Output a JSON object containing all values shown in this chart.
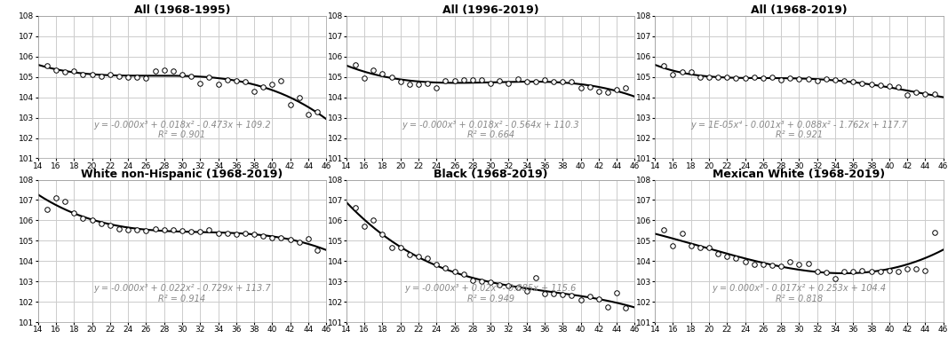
{
  "panels": [
    {
      "title": "All (1968-1995)",
      "equation": "y = -0.000x³ + 0.018x² - 0.473x + 109.2",
      "r2": "R² = 0.901",
      "coeffs_str": "-0.000 0.018 -0.473 109.2",
      "degree": 3,
      "x_data": [
        15,
        16,
        17,
        18,
        19,
        20,
        21,
        22,
        23,
        24,
        25,
        26,
        27,
        28,
        29,
        30,
        31,
        32,
        33,
        34,
        35,
        36,
        37,
        38,
        39,
        40,
        41,
        42,
        43,
        44,
        45
      ],
      "y_data": [
        105.55,
        105.35,
        105.25,
        105.3,
        105.1,
        105.1,
        105.05,
        105.1,
        105.05,
        105.0,
        105.0,
        104.95,
        105.3,
        105.35,
        105.3,
        105.1,
        105.05,
        104.7,
        105.0,
        104.65,
        104.85,
        104.8,
        104.75,
        104.3,
        104.5,
        104.65,
        104.8,
        103.65,
        104.0,
        103.15,
        103.3
      ],
      "x_range": [
        15,
        45
      ]
    },
    {
      "title": "All (1996-2019)",
      "equation": "y = -0.000x³ + 0.018x² - 0.564x + 110.3",
      "r2": "R² = 0.664",
      "coeffs_str": "-0.000 0.018 -0.564 110.3",
      "degree": 3,
      "x_data": [
        15,
        16,
        17,
        18,
        19,
        20,
        21,
        22,
        23,
        24,
        25,
        26,
        27,
        28,
        29,
        30,
        31,
        32,
        33,
        34,
        35,
        36,
        37,
        38,
        39,
        40,
        41,
        42,
        43,
        44,
        45
      ],
      "y_data": [
        105.6,
        104.95,
        105.35,
        105.15,
        105.0,
        104.75,
        104.65,
        104.65,
        104.7,
        104.45,
        104.8,
        104.8,
        104.85,
        104.85,
        104.85,
        104.7,
        104.8,
        104.7,
        104.9,
        104.75,
        104.75,
        104.85,
        104.75,
        104.75,
        104.75,
        104.45,
        104.5,
        104.3,
        104.25,
        104.4,
        104.45
      ],
      "x_range": [
        15,
        45
      ]
    },
    {
      "title": "All (1968-2019)",
      "equation": "y = 1E-05x⁴ - 0.001x³ + 0.088x² - 1.762x + 117.7",
      "r2": "R² = 0.921",
      "coeffs_str": "1e-5 -0.001 0.088 -1.762 117.7",
      "degree": 4,
      "x_data": [
        15,
        16,
        17,
        18,
        19,
        20,
        21,
        22,
        23,
        24,
        25,
        26,
        27,
        28,
        29,
        30,
        31,
        32,
        33,
        34,
        35,
        36,
        37,
        38,
        39,
        40,
        41,
        42,
        43,
        44,
        45
      ],
      "y_data": [
        105.55,
        105.1,
        105.25,
        105.25,
        105.0,
        105.0,
        105.0,
        105.0,
        104.95,
        104.95,
        105.0,
        104.95,
        105.0,
        104.85,
        104.95,
        104.9,
        104.9,
        104.8,
        104.9,
        104.85,
        104.8,
        104.75,
        104.7,
        104.65,
        104.6,
        104.55,
        104.5,
        104.1,
        104.25,
        104.15,
        104.15
      ],
      "x_range": [
        15,
        45
      ]
    },
    {
      "title": "White non-Hispanic (1968-2019)",
      "equation": "y = -0.000x³ + 0.022x² - 0.729x + 113.7",
      "r2": "R² = 0.914",
      "coeffs_str": "-0.000 0.022 -0.729 113.7",
      "degree": 3,
      "x_data": [
        15,
        16,
        17,
        18,
        19,
        20,
        21,
        22,
        23,
        24,
        25,
        26,
        27,
        28,
        29,
        30,
        31,
        32,
        33,
        34,
        35,
        36,
        37,
        38,
        39,
        40,
        41,
        42,
        43,
        44,
        45
      ],
      "y_data": [
        106.55,
        107.1,
        106.95,
        106.35,
        106.1,
        106.0,
        105.85,
        105.75,
        105.6,
        105.55,
        105.55,
        105.5,
        105.6,
        105.55,
        105.55,
        105.5,
        105.45,
        105.45,
        105.55,
        105.35,
        105.35,
        105.3,
        105.35,
        105.3,
        105.25,
        105.15,
        105.15,
        105.05,
        104.95,
        105.1,
        104.55
      ],
      "x_range": [
        15,
        45
      ]
    },
    {
      "title": "Black (1968-2019)",
      "equation": "y = -0.000x³ + 0.02x² - 0.885x + 115.6",
      "r2": "R² = 0.949",
      "coeffs_str": "-0.000 0.02 -0.885 115.6",
      "degree": 3,
      "x_data": [
        15,
        16,
        17,
        18,
        19,
        20,
        21,
        22,
        23,
        24,
        25,
        26,
        27,
        28,
        29,
        30,
        31,
        32,
        33,
        34,
        35,
        36,
        37,
        38,
        39,
        40,
        41,
        42,
        43,
        44,
        45
      ],
      "y_data": [
        106.65,
        105.7,
        106.0,
        105.3,
        104.65,
        104.65,
        104.3,
        104.25,
        104.15,
        103.85,
        103.65,
        103.5,
        103.35,
        103.05,
        103.0,
        102.95,
        102.85,
        102.8,
        102.7,
        102.55,
        103.2,
        102.4,
        102.4,
        102.35,
        102.3,
        102.1,
        102.25,
        102.15,
        101.75,
        102.45,
        101.7
      ],
      "x_range": [
        15,
        45
      ]
    },
    {
      "title": "Mexican White (1968-2019)",
      "equation": "y = 0.000x³ - 0.017x² + 0.253x + 104.4",
      "r2": "R² = 0.818",
      "coeffs_str": "0.000 -0.017 0.253 104.4",
      "degree": 3,
      "x_data": [
        15,
        16,
        17,
        18,
        19,
        20,
        21,
        22,
        23,
        24,
        25,
        26,
        27,
        28,
        29,
        30,
        31,
        32,
        33,
        34,
        35,
        36,
        37,
        38,
        39,
        40,
        41,
        42,
        43,
        44,
        45
      ],
      "y_data": [
        105.55,
        104.75,
        105.35,
        104.75,
        104.65,
        104.65,
        104.35,
        104.25,
        104.15,
        103.95,
        103.85,
        103.85,
        103.8,
        103.75,
        103.95,
        103.85,
        103.9,
        103.5,
        103.45,
        103.15,
        103.5,
        103.5,
        103.55,
        103.5,
        103.5,
        103.55,
        103.5,
        103.6,
        103.6,
        103.55,
        105.4
      ],
      "x_range": [
        15,
        45
      ]
    }
  ],
  "ylim": [
    101,
    108
  ],
  "xlim": [
    14,
    46
  ],
  "xticks": [
    14,
    16,
    18,
    20,
    22,
    24,
    26,
    28,
    30,
    32,
    34,
    36,
    38,
    40,
    42,
    44,
    46
  ],
  "yticks": [
    101,
    102,
    103,
    104,
    105,
    106,
    107,
    108
  ],
  "grid_color": "#cccccc",
  "marker": "o",
  "marker_size": 4,
  "marker_facecolor": "white",
  "marker_edgecolor": "black",
  "line_color": "black",
  "line_width": 1.5,
  "equation_color": "#888888",
  "title_fontsize": 9,
  "tick_fontsize": 6.5,
  "eq_fontsize": 7.0,
  "background_color": "white"
}
